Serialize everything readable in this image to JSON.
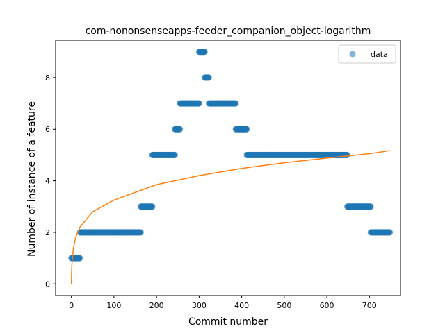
{
  "chart_data": {
    "type": "scatter",
    "title": "com-nononsenseapps-feeder_companion_object-logarithm",
    "xlabel": "Commit number",
    "ylabel": "Number of instance of a feature",
    "xlim": [
      -37,
      773
    ],
    "ylim": [
      -0.45,
      9.45
    ],
    "xticks": [
      0,
      100,
      200,
      300,
      400,
      500,
      600,
      700
    ],
    "yticks": [
      0,
      2,
      4,
      6,
      8
    ],
    "legend": {
      "position": "top-right",
      "entries": [
        "data"
      ]
    },
    "grid": false,
    "colors": {
      "data": "#1f77b4",
      "fit": "#ff7f0e"
    },
    "series": [
      {
        "name": "data",
        "kind": "scatter",
        "segments": [
          {
            "x_start": 0,
            "x_end": 20,
            "y": 1
          },
          {
            "x_start": 20,
            "x_end": 163,
            "y": 2
          },
          {
            "x_start": 163,
            "x_end": 190,
            "y": 3
          },
          {
            "x_start": 190,
            "x_end": 243,
            "y": 5
          },
          {
            "x_start": 243,
            "x_end": 255,
            "y": 6
          },
          {
            "x_start": 255,
            "x_end": 300,
            "y": 7
          },
          {
            "x_start": 300,
            "x_end": 313,
            "y": 9
          },
          {
            "x_start": 313,
            "x_end": 323,
            "y": 8
          },
          {
            "x_start": 323,
            "x_end": 386,
            "y": 7
          },
          {
            "x_start": 386,
            "x_end": 412,
            "y": 6
          },
          {
            "x_start": 412,
            "x_end": 648,
            "y": 5
          },
          {
            "x_start": 648,
            "x_end": 703,
            "y": 3
          },
          {
            "x_start": 703,
            "x_end": 748,
            "y": 2
          }
        ]
      },
      {
        "kind": "line",
        "x": [
          0,
          1,
          2,
          5,
          10,
          20,
          50,
          100,
          200,
          300,
          400,
          500,
          600,
          700,
          748
        ],
        "y": [
          0,
          0.67,
          0.96,
          1.4,
          1.8,
          2.2,
          2.8,
          3.25,
          3.85,
          4.2,
          4.48,
          4.7,
          4.88,
          5.05,
          5.17
        ]
      }
    ]
  }
}
